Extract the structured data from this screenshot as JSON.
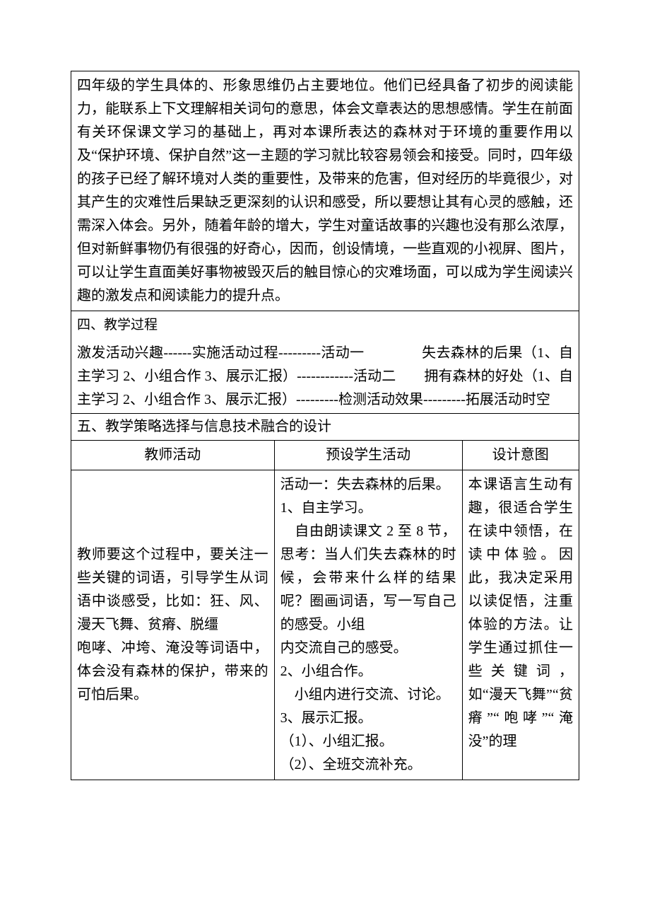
{
  "row1": {
    "text": "四年级的学生具体的、形象思维仍占主要地位。他们已经具备了初步的阅读能力，能联系上下文理解相关词句的意思，体会文章表达的思想感情。学生在前面有关环保课文学习的基础上，再对本课所表达的森林对于环境的重要作用以及“保护环境、保护自然”这一主题的学习就比较容易领会和接受。同时，四年级的孩子已经了解环境对人类的重要性，及带来的危害，但对经历的毕竟很少，对其产生的灾难性后果缺乏更深刻的认识和感受，所以要想让其有心灵的感触，还需深入体会。另外，随着年龄的增大，学生对童话故事的兴趣也没有那么浓厚，但对新鲜事物仍有很强的好奇心，因而，创设情境，一些直观的小视屏、图片，可以让学生直面美好事物被毁灭后的触目惊心的灾难场面，可以成为学生阅读兴趣的激发点和阅读能力的提升点。"
  },
  "row2_head": "四、教学过程",
  "row2_body": "激发活动兴趣------实施活动过程---------活动一　　　　失去森林的后果（1、自主学习 2、小组合作 3、展示汇报）------------活动二　　拥有森林的好处（1、自主学习 2、小组合作 3、展示汇报）---------检测活动效果---------拓展活动时空",
  "row3_head": "五、教学策略选择与信息技术融合的设计",
  "cols": {
    "c1": "教师活动",
    "c2": "预设学生活动",
    "c3": "设计意图"
  },
  "cells": {
    "teacher": "教师要这个过程中，要关注一些关键的词语，引导学生从词语中谈感受，比如：狂、风、漫天飞舞、贫瘠、脱缰\n咆哮、冲垮、淹没等词语中，体会没有森林的保护，带来的可怕后果。",
    "student": "活动一：失去森林的后果。\n1、自主学习。\n　自由朗读课文 2 至 8 节，思考：当人们失去森林的时候，会带来什么样的结果呢？圈画词语，写一写自己的感受。小组\n内交流自己的感受。\n2、小组合作。\n　小组内进行交流、讨论。\n3、展示汇报。\n（1）、小组汇报。\n（2）、全班交流补充。",
    "design": "本课语言生动有趣，很适合学生在读中领悟，在读中体验。因此，我决定采用以读促悟，注重体验的方法。让学生通过抓住一些关键词，如“漫天飞舞”“贫瘠”“咆哮”“淹没”的理"
  },
  "widths": {
    "c1_pct": 40,
    "c2_pct": 37,
    "c3_pct": 23
  }
}
